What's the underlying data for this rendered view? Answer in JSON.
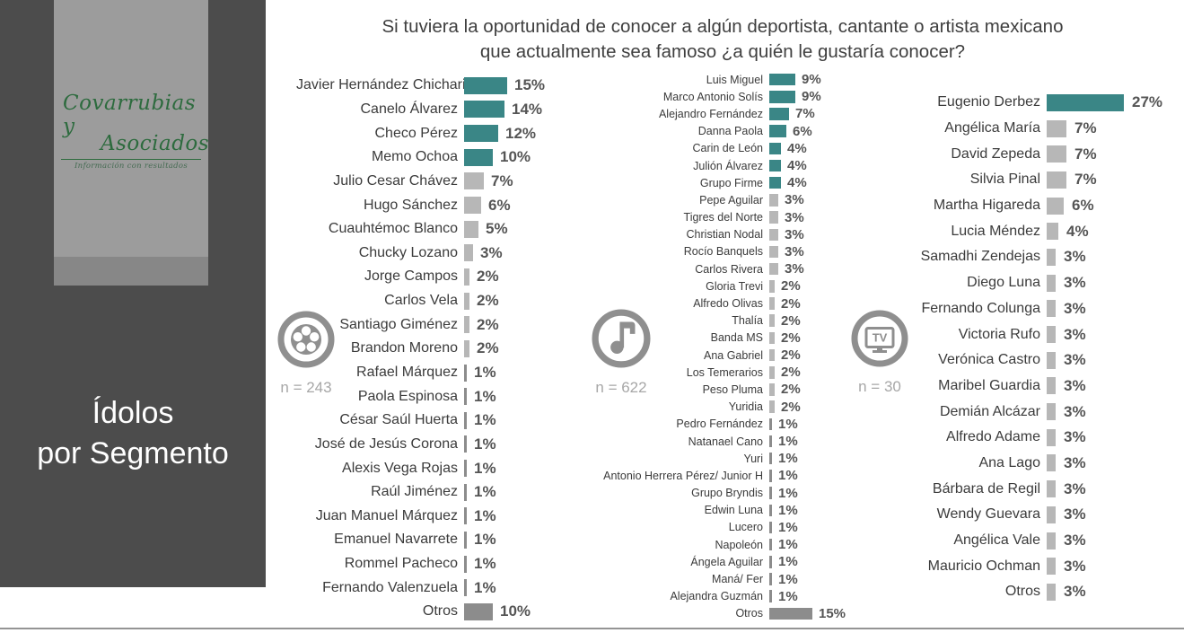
{
  "page": {
    "title_line1": "Si tuviera la oportunidad de conocer a algún deportista, cantante o artista mexicano",
    "title_line2": "que actualmente sea famoso ¿a quién le gustaría conocer?"
  },
  "sidebar": {
    "logo": {
      "name_line1": "Covarrubias y",
      "name_line2": "Asociados",
      "tagline": "Información con resultados"
    },
    "heading_line1": "Ídolos",
    "heading_line2": "por Segmento"
  },
  "colors": {
    "teal": "#3A8686",
    "light_gray": "#b7b7b7",
    "dark_gray": "#8c8c8c",
    "sidebar_bg": "#4c4c4c",
    "logo_green": "#2d6b3e",
    "icon_gray": "#8f8f8f"
  },
  "chart_data": [
    {
      "type": "bar",
      "orientation": "horizontal",
      "icon": "soccer-ball-icon",
      "n_label": "n = 243",
      "unit": "%",
      "categories": [
        "Javier Hernández Chicharito",
        "Canelo Álvarez",
        "Checo Pérez",
        "Memo Ochoa",
        "Julio Cesar Chávez",
        "Hugo Sánchez",
        "Cuauhtémoc Blanco",
        "Chucky Lozano",
        "Jorge Campos",
        "Carlos Vela",
        "Santiago Giménez",
        "Brandon Moreno",
        "Rafael Márquez",
        "Paola Espinosa",
        "César Saúl Huerta",
        "José de Jesús Corona",
        "Alexis Vega Rojas",
        "Raúl Jiménez",
        "Juan Manuel Márquez",
        "Emanuel Navarrete",
        "Rommel Pacheco",
        "Fernando Valenzuela",
        "Otros"
      ],
      "values": [
        15,
        14,
        12,
        10,
        7,
        6,
        5,
        3,
        2,
        2,
        2,
        2,
        1,
        1,
        1,
        1,
        1,
        1,
        1,
        1,
        1,
        1,
        10
      ],
      "bar_styles": [
        "teal",
        "teal",
        "teal",
        "teal",
        "gray",
        "gray",
        "gray",
        "gray",
        "gray",
        "gray",
        "gray",
        "gray",
        "dark",
        "dark",
        "dark",
        "dark",
        "dark",
        "dark",
        "dark",
        "dark",
        "dark",
        "dark",
        "dark"
      ]
    },
    {
      "type": "bar",
      "orientation": "horizontal",
      "icon": "music-note-icon",
      "n_label": "n = 622",
      "unit": "%",
      "categories": [
        "Luis Miguel",
        "Marco Antonio Solís",
        "Alejandro Fernández",
        "Danna Paola",
        "Carin de León",
        "Julión Álvarez",
        "Grupo Firme",
        "Pepe Aguilar",
        "Tigres del Norte",
        "Christian Nodal",
        "Rocío Banquels",
        "Carlos Rivera",
        "Gloria Trevi",
        "Alfredo Olivas",
        "Thalía",
        "Banda MS",
        "Ana Gabriel",
        "Los Temerarios",
        "Peso Pluma",
        "Yuridia",
        "Pedro Fernández",
        "Natanael Cano",
        "Yuri",
        "Antonio Herrera Pérez/ Junior H",
        "Grupo Bryndis",
        "Edwin Luna",
        "Lucero",
        "Napoleón",
        "Ángela Aguilar",
        "Maná/ Fer",
        "Alejandra Guzmán",
        "Otros"
      ],
      "values": [
        9,
        9,
        7,
        6,
        4,
        4,
        4,
        3,
        3,
        3,
        3,
        3,
        2,
        2,
        2,
        2,
        2,
        2,
        2,
        2,
        1,
        1,
        1,
        1,
        1,
        1,
        1,
        1,
        1,
        1,
        1,
        15
      ],
      "bar_styles": [
        "teal",
        "teal",
        "teal",
        "teal",
        "teal",
        "teal",
        "teal",
        "gray",
        "gray",
        "gray",
        "gray",
        "gray",
        "gray",
        "gray",
        "gray",
        "gray",
        "gray",
        "gray",
        "gray",
        "gray",
        "dark",
        "dark",
        "dark",
        "dark",
        "dark",
        "dark",
        "dark",
        "dark",
        "dark",
        "dark",
        "dark",
        "dark"
      ]
    },
    {
      "type": "bar",
      "orientation": "horizontal",
      "icon": "tv-icon",
      "n_label": "n = 30",
      "unit": "%",
      "categories": [
        "Eugenio Derbez",
        "Angélica María",
        "David Zepeda",
        "Silvia Pinal",
        "Martha Higareda",
        "Lucia Méndez",
        "Samadhi Zendejas",
        "Diego Luna",
        "Fernando Colunga",
        "Victoria Rufo",
        "Verónica Castro",
        "Maribel Guardia",
        "Demián Alcázar",
        "Alfredo Adame",
        "Ana Lago",
        "Bárbara de Regil",
        "Wendy Guevara",
        "Angélica Vale",
        "Mauricio Ochman",
        "Otros"
      ],
      "values": [
        27,
        7,
        7,
        7,
        6,
        4,
        3,
        3,
        3,
        3,
        3,
        3,
        3,
        3,
        3,
        3,
        3,
        3,
        3,
        3
      ],
      "bar_styles": [
        "teal",
        "gray",
        "gray",
        "gray",
        "gray",
        "gray",
        "gray",
        "gray",
        "gray",
        "gray",
        "gray",
        "gray",
        "gray",
        "gray",
        "gray",
        "gray",
        "gray",
        "gray",
        "gray",
        "gray"
      ]
    }
  ]
}
